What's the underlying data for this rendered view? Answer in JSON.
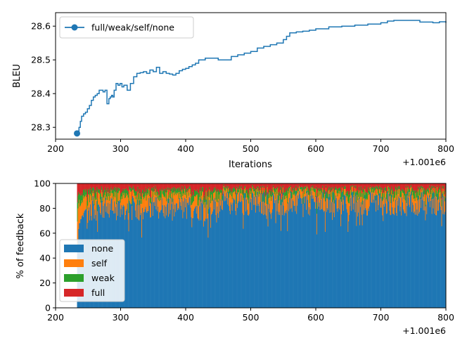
{
  "chart_data": [
    {
      "type": "line",
      "xlabel": "Iterations",
      "ylabel": "BLEU",
      "x_offset_text": "+1.001e6",
      "xlim": [
        200,
        800
      ],
      "ylim": [
        28.265,
        28.64
      ],
      "xticks": [
        "200",
        "300",
        "400",
        "500",
        "600",
        "700",
        "800"
      ],
      "yticks": [
        "28.3",
        "28.4",
        "28.5",
        "28.6"
      ],
      "legend": "top-left",
      "color": "#1f77b4",
      "series": [
        {
          "name": "full/weak/self/none",
          "x": [
            233,
            236,
            238,
            240,
            243,
            246,
            249,
            252,
            255,
            258,
            261,
            264,
            267,
            270,
            273,
            276,
            279,
            282,
            284,
            286,
            288,
            290,
            293,
            296,
            299,
            302,
            305,
            310,
            315,
            320,
            325,
            330,
            335,
            340,
            345,
            350,
            355,
            360,
            365,
            370,
            375,
            380,
            385,
            390,
            395,
            400,
            405,
            410,
            415,
            420,
            430,
            440,
            450,
            460,
            470,
            480,
            490,
            500,
            510,
            520,
            530,
            540,
            550,
            555,
            560,
            570,
            580,
            590,
            600,
            620,
            640,
            660,
            680,
            700,
            710,
            720,
            740,
            760,
            780,
            790,
            800
          ],
          "y": [
            28.282,
            28.3,
            28.318,
            28.333,
            28.34,
            28.345,
            28.355,
            28.365,
            28.38,
            28.39,
            28.395,
            28.4,
            28.41,
            28.41,
            28.405,
            28.41,
            28.37,
            28.385,
            28.39,
            28.395,
            28.39,
            28.41,
            28.43,
            28.425,
            28.43,
            28.42,
            28.425,
            28.41,
            28.43,
            28.45,
            28.46,
            28.462,
            28.465,
            28.46,
            28.47,
            28.465,
            28.478,
            28.46,
            28.465,
            28.46,
            28.458,
            28.455,
            28.46,
            28.468,
            28.472,
            28.475,
            28.48,
            28.485,
            28.49,
            28.5,
            28.505,
            28.505,
            28.5,
            28.5,
            28.51,
            28.515,
            28.52,
            28.525,
            28.535,
            28.54,
            28.545,
            28.55,
            28.56,
            28.57,
            28.58,
            28.583,
            28.585,
            28.588,
            28.592,
            28.598,
            28.6,
            28.603,
            28.606,
            28.61,
            28.615,
            28.617,
            28.617,
            28.612,
            28.61,
            28.613,
            28.61
          ]
        }
      ]
    },
    {
      "type": "bar",
      "stacked": true,
      "ylabel": "% of feedback",
      "x_offset_text": "+1.001e6",
      "xlim": [
        200,
        800
      ],
      "ylim": [
        0,
        100
      ],
      "xticks": [
        "200",
        "300",
        "400",
        "500",
        "600",
        "700",
        "800"
      ],
      "yticks": [
        "0",
        "20",
        "40",
        "60",
        "80",
        "100"
      ],
      "legend": "lower-left",
      "x_range": [
        233,
        800
      ],
      "series": [
        {
          "name": "none",
          "color": "#1f77b4",
          "typical_share": 80
        },
        {
          "name": "self",
          "color": "#ff7f0e",
          "typical_share": 10
        },
        {
          "name": "weak",
          "color": "#2ca02c",
          "typical_share": 6
        },
        {
          "name": "full",
          "color": "#d62728",
          "typical_share": 4
        }
      ]
    }
  ]
}
